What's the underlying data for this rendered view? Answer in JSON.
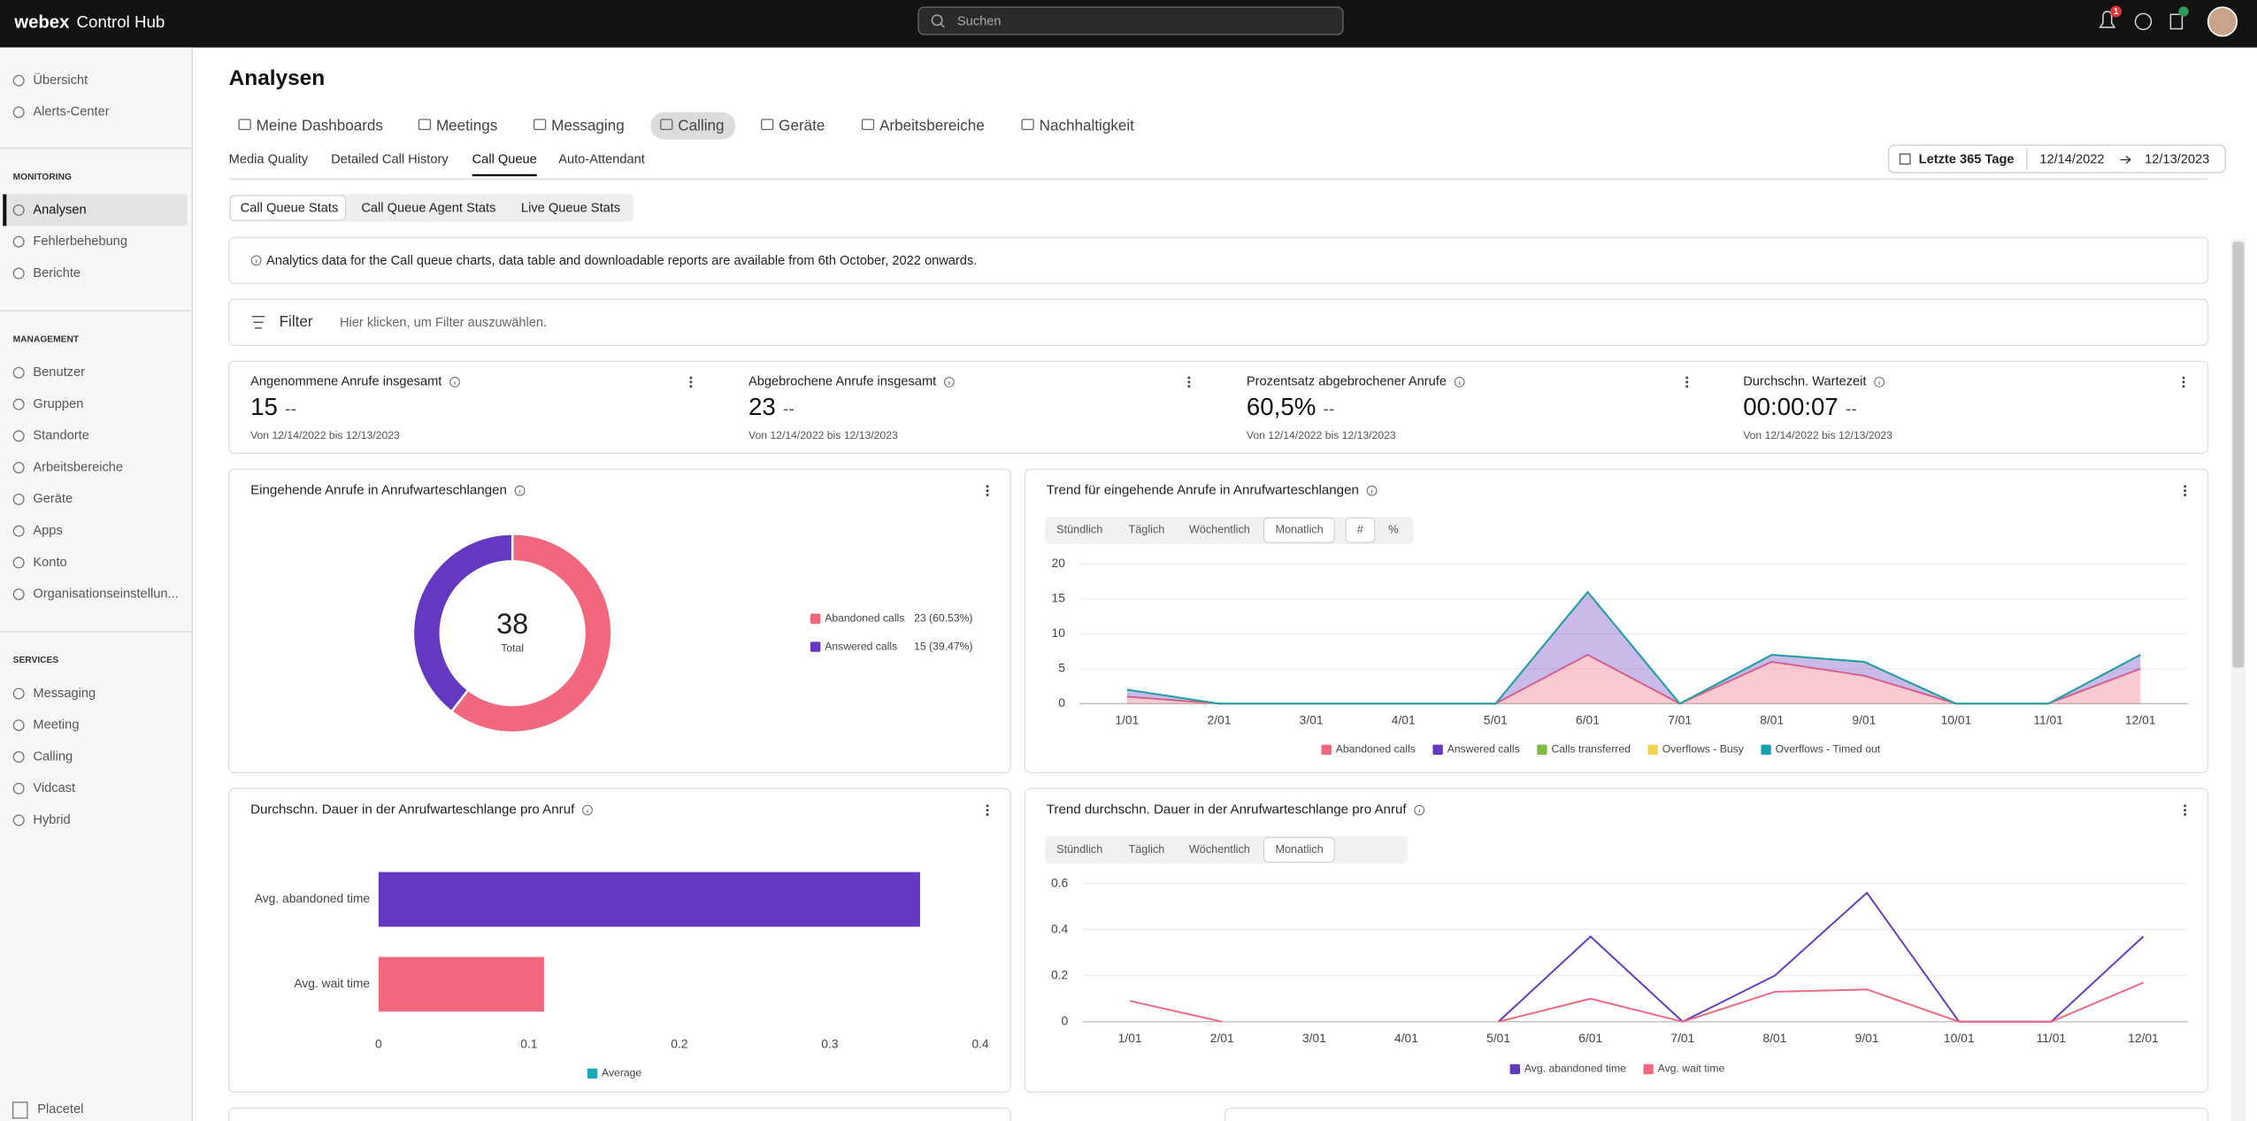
{
  "header": {
    "brand": "webex",
    "product": "Control Hub",
    "search_placeholder": "Suchen",
    "notification_count": 1
  },
  "sidebar": {
    "top": [
      "Übersicht",
      "Alerts-Center"
    ],
    "sections": [
      {
        "title": "MONITORING",
        "items": [
          "Analysen",
          "Fehlerbehebung",
          "Berichte"
        ]
      },
      {
        "title": "MANAGEMENT",
        "items": [
          "Benutzer",
          "Gruppen",
          "Standorte",
          "Arbeitsbereiche",
          "Geräte",
          "Apps",
          "Konto",
          "Organisationseinstellun..."
        ]
      },
      {
        "title": "SERVICES",
        "items": [
          "Messaging",
          "Meeting",
          "Calling",
          "Vidcast",
          "Hybrid"
        ]
      }
    ],
    "selected": [
      0,
      0
    ],
    "footer": "Placetel"
  },
  "page": {
    "title": "Analysen",
    "tabs": [
      "Meine Dashboards",
      "Meetings",
      "Messaging",
      "Calling",
      "Geräte",
      "Arbeitsbereiche",
      "Nachhaltigkeit"
    ],
    "selected_tab": 3,
    "subtabs": [
      "Media Quality",
      "Detailed Call History",
      "Call Queue",
      "Auto-Attendant"
    ],
    "selected_subtab": 2,
    "date_range": {
      "preset": "Letzte 365 Tage",
      "from": "12/14/2022",
      "to": "12/13/2023"
    },
    "segments": [
      "Call Queue Stats",
      "Call Queue Agent Stats",
      "Live Queue Stats"
    ],
    "selected_segment": 0,
    "notice": "Analytics data for the Call queue charts, data table and downloadable reports are available from 6th October, 2022 onwards.",
    "filter": {
      "label": "Filter",
      "placeholder": "Hier klicken, um Filter auszuwählen."
    },
    "kpis": [
      {
        "title": "Angenommene Anrufe insgesamt",
        "value": 15,
        "delta": "--",
        "period": "Von 12/14/2022 bis 12/13/2023"
      },
      {
        "title": "Abgebrochene Anrufe insgesamt",
        "value": 23,
        "delta": "--",
        "period": "Von 12/14/2022 bis 12/13/2023"
      },
      {
        "title": "Prozentsatz abgebrochener Anrufe",
        "value": "60,5%",
        "delta": "--",
        "period": "Von 12/14/2022 bis 12/13/2023"
      },
      {
        "title": "Durchschn. Wartezeit",
        "value": "00:00:07",
        "delta": "--",
        "period": "Von 12/14/2022 bis 12/13/2023"
      }
    ]
  },
  "chart_data": [
    {
      "type": "donut",
      "title": "Eingehende Anrufe in Anrufwarteschlangen",
      "total": 38,
      "total_label": "Total",
      "categories": [
        "Abandoned calls",
        "Answered calls"
      ],
      "values": [
        23,
        15
      ],
      "value_labels": [
        "23 (60.53%)",
        "15 (39.47%)"
      ],
      "colors": [
        "#f0677e",
        "#6438c0"
      ]
    },
    {
      "type": "stacked-area",
      "title": "Trend für eingehende Anrufe in Anrufwarteschlangen",
      "granularity": [
        "Stündlich",
        "Täglich",
        "Wöchentlich",
        "Monatlich"
      ],
      "selected_granularity": 3,
      "modes": [
        "#",
        "%"
      ],
      "selected_mode": 0,
      "categories": [
        "1/01",
        "2/01",
        "3/01",
        "4/01",
        "5/01",
        "6/01",
        "7/01",
        "8/01",
        "9/01",
        "10/01",
        "11/01",
        "12/01"
      ],
      "series": [
        {
          "name": "Abandoned calls",
          "color": "#f0677e",
          "values": [
            1,
            0,
            0,
            0,
            0,
            7,
            0,
            6,
            4,
            0,
            0,
            5
          ]
        },
        {
          "name": "Answered calls",
          "color": "#6438c0",
          "values": [
            1,
            0,
            0,
            0,
            0,
            9,
            0,
            1,
            2,
            0,
            0,
            2
          ]
        },
        {
          "name": "Calls transferred",
          "color": "#7dbb42",
          "values": [
            0,
            0,
            0,
            0,
            0,
            0,
            0,
            0,
            0,
            0,
            0,
            0
          ]
        },
        {
          "name": "Overflows - Busy",
          "color": "#f2d34f",
          "values": [
            0,
            0,
            0,
            0,
            0,
            0,
            0,
            0,
            0,
            0,
            0,
            0
          ]
        },
        {
          "name": "Overflows - Timed out",
          "color": "#1a9fb0",
          "values": [
            0,
            0,
            0,
            0,
            0,
            0,
            0,
            0,
            0,
            0,
            0,
            0
          ]
        }
      ],
      "ylim": [
        0,
        20
      ],
      "yticks": [
        0,
        5,
        10,
        15,
        20
      ],
      "grid": true
    },
    {
      "type": "hbar",
      "title": "Durchschn. Dauer in der Anrufwarteschlange pro Anruf",
      "categories": [
        "Avg. abandoned time",
        "Avg. wait time"
      ],
      "series": [
        {
          "name": "Average",
          "color": "#1ba7b8",
          "values": [
            0.36,
            0.11
          ]
        }
      ],
      "bar_colors": [
        "#6438c0",
        "#f0677e"
      ],
      "xlim": [
        0,
        0.4
      ],
      "xticks": [
        0,
        0.1,
        0.2,
        0.3,
        0.4
      ]
    },
    {
      "type": "line",
      "title": "Trend durchschn. Dauer in der Anrufwarteschlange pro Anruf",
      "granularity": [
        "Stündlich",
        "Täglich",
        "Wöchentlich",
        "Monatlich"
      ],
      "selected_granularity": 3,
      "categories": [
        "1/01",
        "2/01",
        "3/01",
        "4/01",
        "5/01",
        "6/01",
        "7/01",
        "8/01",
        "9/01",
        "10/01",
        "11/01",
        "12/01"
      ],
      "series": [
        {
          "name": "Avg. abandoned time",
          "color": "#6438c0",
          "values": [
            null,
            null,
            null,
            null,
            0,
            0.37,
            0,
            0.2,
            0.56,
            0,
            0,
            0.37
          ]
        },
        {
          "name": "Avg. wait time",
          "color": "#f0677e",
          "values": [
            0.09,
            0,
            null,
            null,
            0,
            0.1,
            0,
            0.13,
            0.14,
            0,
            0,
            0.17
          ]
        }
      ],
      "ylim": [
        0,
        0.6
      ],
      "yticks": [
        0,
        0.2,
        0.4,
        0.6
      ],
      "grid": true
    }
  ]
}
